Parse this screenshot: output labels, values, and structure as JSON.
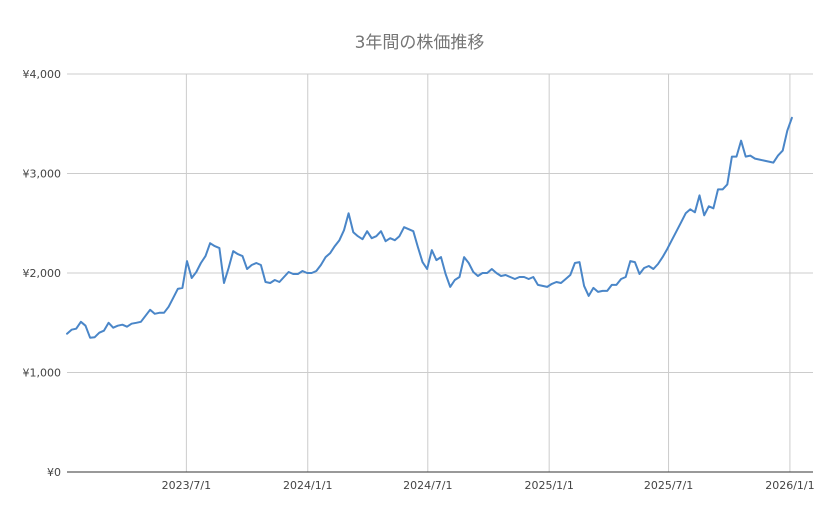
{
  "chart_data": {
    "type": "line",
    "title": "3年間の株価推移",
    "xlabel": "",
    "ylabel": "",
    "x_start": "2023-01-01",
    "x_end": "2026-02-05",
    "ylim": [
      0,
      4000
    ],
    "y_ticks": [
      {
        "value": 0,
        "label": "¥0"
      },
      {
        "value": 1000,
        "label": "¥1,000"
      },
      {
        "value": 2000,
        "label": "¥2,000"
      },
      {
        "value": 3000,
        "label": "¥3,000"
      },
      {
        "value": 4000,
        "label": "¥4,000"
      }
    ],
    "x_ticks": [
      {
        "date": "2023-07-01",
        "label": "2023/7/1"
      },
      {
        "date": "2024-01-01",
        "label": "2024/1/1"
      },
      {
        "date": "2024-07-01",
        "label": "2024/7/1"
      },
      {
        "date": "2025-01-01",
        "label": "2025/1/1"
      },
      {
        "date": "2025-07-01",
        "label": "2025/7/1"
      },
      {
        "date": "2026-01-01",
        "label": "2026/1/1"
      }
    ],
    "grid": true,
    "legend": "none",
    "colors": {
      "line": "#4a86c8",
      "grid": "#cccccc",
      "axis": "#333333"
    },
    "series": [
      {
        "values": [
          [
            "2023-01-01",
            1390
          ],
          [
            "2023-01-08",
            1430
          ],
          [
            "2023-01-15",
            1440
          ],
          [
            "2023-01-22",
            1510
          ],
          [
            "2023-01-29",
            1470
          ],
          [
            "2023-02-05",
            1350
          ],
          [
            "2023-02-12",
            1355
          ],
          [
            "2023-02-19",
            1400
          ],
          [
            "2023-02-26",
            1420
          ],
          [
            "2023-03-05",
            1500
          ],
          [
            "2023-03-12",
            1450
          ],
          [
            "2023-03-19",
            1470
          ],
          [
            "2023-03-26",
            1480
          ],
          [
            "2023-04-02",
            1460
          ],
          [
            "2023-04-09",
            1490
          ],
          [
            "2023-04-16",
            1500
          ],
          [
            "2023-04-23",
            1510
          ],
          [
            "2023-04-30",
            1570
          ],
          [
            "2023-05-07",
            1630
          ],
          [
            "2023-05-14",
            1590
          ],
          [
            "2023-05-21",
            1600
          ],
          [
            "2023-05-28",
            1600
          ],
          [
            "2023-06-04",
            1660
          ],
          [
            "2023-06-11",
            1750
          ],
          [
            "2023-06-18",
            1840
          ],
          [
            "2023-06-25",
            1850
          ],
          [
            "2023-07-02",
            2120
          ],
          [
            "2023-07-09",
            1950
          ],
          [
            "2023-07-16",
            2010
          ],
          [
            "2023-07-23",
            2100
          ],
          [
            "2023-07-30",
            2170
          ],
          [
            "2023-08-06",
            2300
          ],
          [
            "2023-08-13",
            2270
          ],
          [
            "2023-08-20",
            2250
          ],
          [
            "2023-08-27",
            1900
          ],
          [
            "2023-09-03",
            2050
          ],
          [
            "2023-09-10",
            2220
          ],
          [
            "2023-09-17",
            2190
          ],
          [
            "2023-09-24",
            2170
          ],
          [
            "2023-10-01",
            2040
          ],
          [
            "2023-10-08",
            2080
          ],
          [
            "2023-10-15",
            2100
          ],
          [
            "2023-10-22",
            2080
          ],
          [
            "2023-10-29",
            1910
          ],
          [
            "2023-11-05",
            1900
          ],
          [
            "2023-11-12",
            1930
          ],
          [
            "2023-11-19",
            1910
          ],
          [
            "2023-11-26",
            1960
          ],
          [
            "2023-12-03",
            2010
          ],
          [
            "2023-12-10",
            1990
          ],
          [
            "2023-12-17",
            1990
          ],
          [
            "2023-12-24",
            2020
          ],
          [
            "2023-12-31",
            2000
          ],
          [
            "2024-01-07",
            2000
          ],
          [
            "2024-01-14",
            2020
          ],
          [
            "2024-01-21",
            2080
          ],
          [
            "2024-01-28",
            2160
          ],
          [
            "2024-02-04",
            2200
          ],
          [
            "2024-02-11",
            2270
          ],
          [
            "2024-02-18",
            2330
          ],
          [
            "2024-02-25",
            2430
          ],
          [
            "2024-03-03",
            2600
          ],
          [
            "2024-03-10",
            2410
          ],
          [
            "2024-03-17",
            2370
          ],
          [
            "2024-03-24",
            2340
          ],
          [
            "2024-03-31",
            2420
          ],
          [
            "2024-04-07",
            2350
          ],
          [
            "2024-04-14",
            2370
          ],
          [
            "2024-04-21",
            2420
          ],
          [
            "2024-04-28",
            2320
          ],
          [
            "2024-05-05",
            2350
          ],
          [
            "2024-05-12",
            2330
          ],
          [
            "2024-05-19",
            2370
          ],
          [
            "2024-05-26",
            2460
          ],
          [
            "2024-06-02",
            2440
          ],
          [
            "2024-06-09",
            2420
          ],
          [
            "2024-06-16",
            2260
          ],
          [
            "2024-06-23",
            2110
          ],
          [
            "2024-06-30",
            2040
          ],
          [
            "2024-07-07",
            2230
          ],
          [
            "2024-07-14",
            2130
          ],
          [
            "2024-07-21",
            2160
          ],
          [
            "2024-07-28",
            1990
          ],
          [
            "2024-08-04",
            1860
          ],
          [
            "2024-08-11",
            1930
          ],
          [
            "2024-08-18",
            1960
          ],
          [
            "2024-08-25",
            2160
          ],
          [
            "2024-09-01",
            2100
          ],
          [
            "2024-09-08",
            2010
          ],
          [
            "2024-09-15",
            1970
          ],
          [
            "2024-09-22",
            2000
          ],
          [
            "2024-09-29",
            2000
          ],
          [
            "2024-10-06",
            2040
          ],
          [
            "2024-10-13",
            2000
          ],
          [
            "2024-10-20",
            1970
          ],
          [
            "2024-10-27",
            1980
          ],
          [
            "2024-11-03",
            1960
          ],
          [
            "2024-11-10",
            1940
          ],
          [
            "2024-11-17",
            1960
          ],
          [
            "2024-11-24",
            1960
          ],
          [
            "2024-12-01",
            1940
          ],
          [
            "2024-12-08",
            1960
          ],
          [
            "2024-12-15",
            1880
          ],
          [
            "2024-12-22",
            1870
          ],
          [
            "2024-12-29",
            1860
          ],
          [
            "2025-01-05",
            1890
          ],
          [
            "2025-01-12",
            1910
          ],
          [
            "2025-01-19",
            1900
          ],
          [
            "2025-01-26",
            1940
          ],
          [
            "2025-02-02",
            1980
          ],
          [
            "2025-02-09",
            2100
          ],
          [
            "2025-02-16",
            2110
          ],
          [
            "2025-02-23",
            1870
          ],
          [
            "2025-03-02",
            1770
          ],
          [
            "2025-03-09",
            1850
          ],
          [
            "2025-03-16",
            1810
          ],
          [
            "2025-03-23",
            1820
          ],
          [
            "2025-03-30",
            1820
          ],
          [
            "2025-04-06",
            1880
          ],
          [
            "2025-04-13",
            1880
          ],
          [
            "2025-04-20",
            1940
          ],
          [
            "2025-04-27",
            1960
          ],
          [
            "2025-05-04",
            2120
          ],
          [
            "2025-05-11",
            2110
          ],
          [
            "2025-05-18",
            1990
          ],
          [
            "2025-05-25",
            2050
          ],
          [
            "2025-06-01",
            2070
          ],
          [
            "2025-06-08",
            2040
          ],
          [
            "2025-06-15",
            2090
          ],
          [
            "2025-06-22",
            2160
          ],
          [
            "2025-06-29",
            2240
          ],
          [
            "2025-07-06",
            2330
          ],
          [
            "2025-07-13",
            2420
          ],
          [
            "2025-07-20",
            2510
          ],
          [
            "2025-07-27",
            2600
          ],
          [
            "2025-08-03",
            2640
          ],
          [
            "2025-08-10",
            2610
          ],
          [
            "2025-08-17",
            2780
          ],
          [
            "2025-08-24",
            2580
          ],
          [
            "2025-08-31",
            2670
          ],
          [
            "2025-09-07",
            2650
          ],
          [
            "2025-09-14",
            2840
          ],
          [
            "2025-09-21",
            2840
          ],
          [
            "2025-09-28",
            2890
          ],
          [
            "2025-10-05",
            3170
          ],
          [
            "2025-10-12",
            3170
          ],
          [
            "2025-10-19",
            3330
          ],
          [
            "2025-10-26",
            3170
          ],
          [
            "2025-11-02",
            3180
          ],
          [
            "2025-11-09",
            3150
          ],
          [
            "2025-11-16",
            3140
          ],
          [
            "2025-11-23",
            3130
          ],
          [
            "2025-11-30",
            3120
          ],
          [
            "2025-12-07",
            3110
          ],
          [
            "2025-12-14",
            3180
          ],
          [
            "2025-12-21",
            3230
          ],
          [
            "2025-12-28",
            3430
          ],
          [
            "2026-01-04",
            3560
          ]
        ]
      }
    ]
  }
}
